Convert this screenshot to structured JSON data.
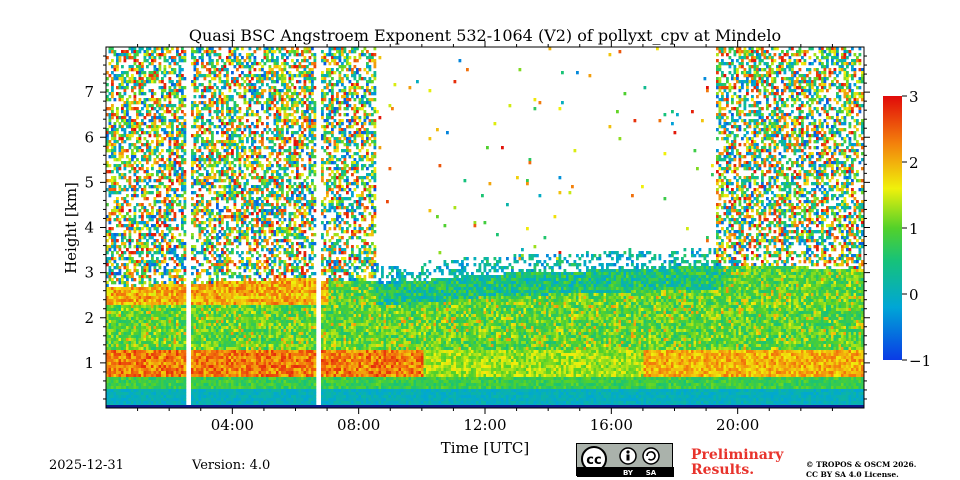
{
  "chart_data": {
    "type": "heatmap",
    "title": "Quasi BSC Angstroem Exponent 532-1064 (V2) of pollyxt_cpv at Mindelo",
    "xlabel": "Time [UTC]",
    "ylabel": "Height [km]",
    "xlim": [
      0,
      24
    ],
    "ylim": [
      0,
      8
    ],
    "x_ticks": [
      4,
      8,
      12,
      16,
      20
    ],
    "x_tick_labels": [
      "04:00",
      "08:00",
      "12:00",
      "16:00",
      "20:00"
    ],
    "y_ticks": [
      1,
      2,
      3,
      4,
      5,
      6,
      7
    ],
    "y_tick_labels": [
      "1",
      "2",
      "3",
      "4",
      "5",
      "6",
      "7"
    ],
    "colorbar": {
      "range": [
        -1,
        3
      ],
      "ticks": [
        -1,
        0,
        1,
        2,
        3
      ],
      "tick_labels": [
        "−1",
        "0",
        "1",
        "2",
        "3"
      ],
      "colormap": "jet"
    },
    "data_gaps_utc": [
      [
        2.5,
        2.65
      ],
      [
        6.6,
        6.75
      ]
    ],
    "aerosol_layer_top_km": [
      [
        0,
        2.7
      ],
      [
        6,
        2.9
      ],
      [
        9,
        2.8
      ],
      [
        12,
        3.0
      ],
      [
        16,
        3.1
      ],
      [
        20,
        3.2
      ],
      [
        24,
        3.1
      ]
    ],
    "noise_region_utc": [
      [
        0,
        8.5
      ],
      [
        19.3,
        24
      ]
    ],
    "value_bands": [
      {
        "height_km": [
          0.0,
          0.45
        ],
        "value": -0.1,
        "description": "near-surface cyan/blue"
      },
      {
        "height_km": [
          0.45,
          0.7
        ],
        "value": 0.8
      },
      {
        "height_km": [
          0.7,
          1.3
        ],
        "value": 2.3,
        "description": "red/orange band 0-10 UTC, orange band 17-24 UTC"
      },
      {
        "height_km": [
          1.3,
          2.6
        ],
        "value": 0.9,
        "description": "green/yellow aerosol layer"
      },
      {
        "height_km": [
          2.6,
          3.1
        ],
        "value": 0.2,
        "description": "blue/teal scattered top"
      }
    ]
  },
  "footer": {
    "date": "2025-12-31",
    "version": "Version: 4.0",
    "license_badge": {
      "symbols": [
        "cc",
        "by",
        "sa"
      ],
      "labels": [
        "BY",
        "SA"
      ],
      "text": "cc"
    },
    "preliminary_line1": "Preliminary",
    "preliminary_line2": "Results.",
    "copyright_line1": "© TROPOS & OSCM 2026.",
    "copyright_line2": "CC BY SA 4.0 License."
  }
}
